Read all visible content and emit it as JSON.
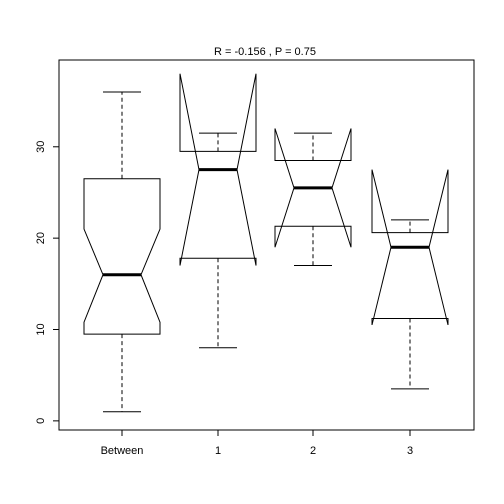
{
  "chart_data": {
    "type": "boxplot",
    "title": "R =  -0.156 ,  P =  0.75",
    "categories": [
      "Between",
      "1",
      "2",
      "3"
    ],
    "ylim": [
      -1,
      39.5
    ],
    "yticks": [
      0,
      10,
      20,
      30
    ],
    "ytick_labels": [
      "0",
      "10",
      "20",
      "30"
    ],
    "grid": false,
    "boxes": [
      {
        "label": "Between",
        "whisker_low": 1,
        "q1": 9.5,
        "median": 16,
        "q3": 26.5,
        "whisker_high": 36,
        "notch_low": 10.8,
        "notch_high": 21
      },
      {
        "label": "1",
        "whisker_low": 8,
        "q1": 17.8,
        "median": 27.5,
        "q3": 29.5,
        "whisker_high": 31.5,
        "notch_low": 17,
        "notch_high": 38
      },
      {
        "label": "2",
        "whisker_low": 17,
        "q1": 21.3,
        "median": 25.5,
        "q3": 28.5,
        "whisker_high": 31.5,
        "notch_low": 19,
        "notch_high": 32
      },
      {
        "label": "3",
        "whisker_low": 3.5,
        "q1": 11.2,
        "median": 19,
        "q3": 20.6,
        "whisker_high": 22,
        "notch_low": 10.5,
        "notch_high": 27.5
      }
    ]
  }
}
